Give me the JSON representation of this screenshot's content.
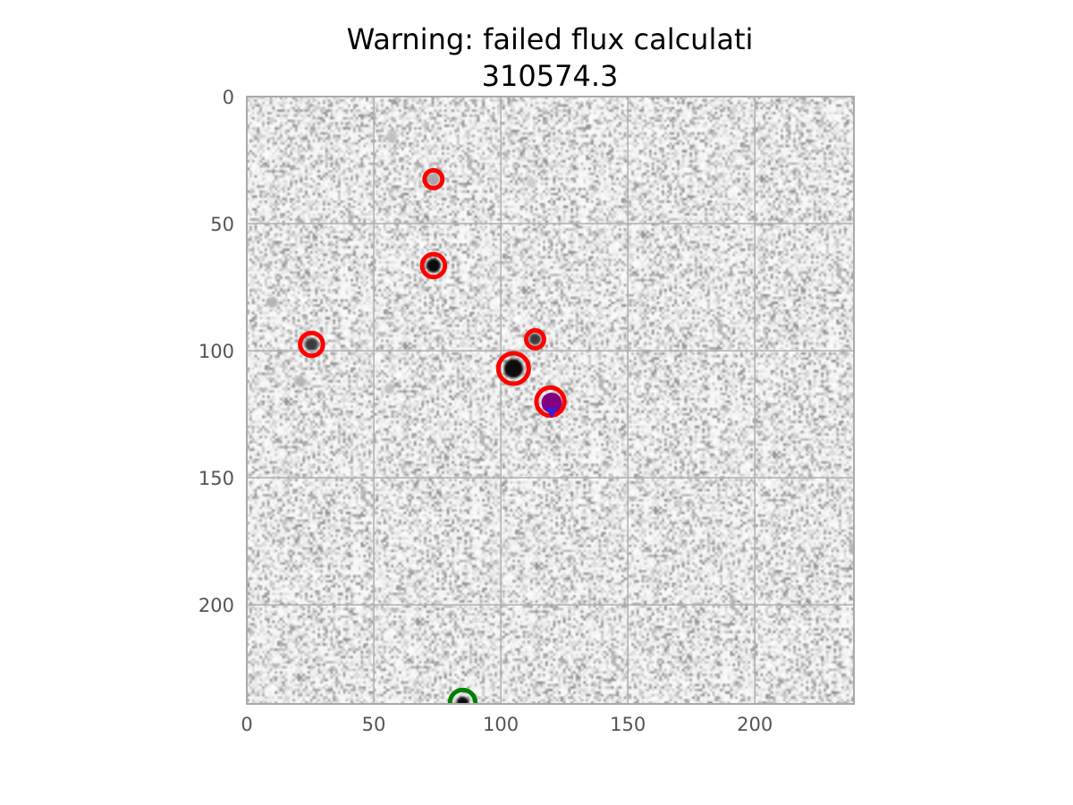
{
  "chart_data": {
    "type": "scatter",
    "title_line1": "Warning: failed flux calculati",
    "title_line2": "310574.3",
    "xlabel": "",
    "ylabel": "",
    "xlim": [
      0,
      239
    ],
    "ylim": [
      239,
      0
    ],
    "y_inverted": true,
    "grid": true,
    "x_ticks": [
      0,
      50,
      100,
      150,
      200
    ],
    "y_ticks": [
      0,
      50,
      100,
      150,
      200
    ],
    "background": "grayscale noise image",
    "detected_sources": [
      {
        "x": 73.5,
        "y": 32.5,
        "r": 3.5
      },
      {
        "x": 73.5,
        "y": 66.5,
        "r": 4.5
      },
      {
        "x": 25.5,
        "y": 97.5,
        "r": 4.5
      },
      {
        "x": 113.5,
        "y": 95.5,
        "r": 3.5
      },
      {
        "x": 105.0,
        "y": 107.0,
        "r": 6.0
      },
      {
        "x": 119.5,
        "y": 120.0,
        "r": 5.5
      }
    ],
    "stars": [
      {
        "x": 73.5,
        "y": 32.5,
        "size": 2.5,
        "peak": 0.35
      },
      {
        "x": 73.5,
        "y": 66.5,
        "size": 2.8,
        "peak": 1.0
      },
      {
        "x": 25.5,
        "y": 97.5,
        "size": 2.6,
        "peak": 0.8
      },
      {
        "x": 113.5,
        "y": 95.5,
        "size": 2.3,
        "peak": 0.8
      },
      {
        "x": 105.0,
        "y": 107.0,
        "size": 3.8,
        "peak": 1.0
      },
      {
        "x": 85.0,
        "y": 238.5,
        "size": 2.4,
        "peak": 1.0
      },
      {
        "x": 10.0,
        "y": 81.0,
        "size": 2.2,
        "peak": 0.3
      },
      {
        "x": 21.0,
        "y": 112.0,
        "size": 2.0,
        "peak": 0.3
      },
      {
        "x": 57.0,
        "y": 16.0,
        "size": 2.0,
        "peak": 0.25
      },
      {
        "x": 56.0,
        "y": 115.0,
        "size": 2.0,
        "peak": 0.25
      },
      {
        "x": 112.0,
        "y": 34.0,
        "size": 2.0,
        "peak": 0.2
      },
      {
        "x": 170.0,
        "y": 160.0,
        "size": 1.5,
        "peak": 0.2
      }
    ],
    "target": {
      "x": 120.0,
      "y": 120.5,
      "r": 4.0,
      "color": "#800080"
    },
    "target_marker": {
      "x": 120.0,
      "y": 123.0,
      "color": "#3b1bd6"
    },
    "reference": {
      "x": 85.0,
      "y": 238.5,
      "r": 5.0,
      "color": "#008000"
    },
    "colors": {
      "detection_ring": "#ff0000",
      "grid": "#b0b0b0",
      "spine": "#aaaaaa",
      "tick_label": "#555555"
    }
  }
}
